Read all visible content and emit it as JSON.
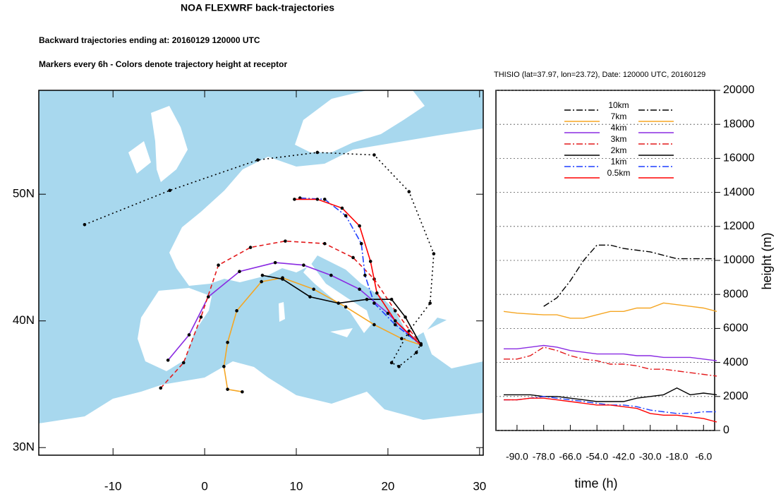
{
  "chart_data": [
    {
      "type": "trajectory",
      "title": "NOA FLEXWRF back-trajectories",
      "subtitle": "Backward trajectories ending at: 20160129  120000 UTC",
      "annotation": "Markers every 6h - Colors denote trajectory height at receptor",
      "xlim": [
        -18.1,
        30.4
      ],
      "ylim": [
        29.4,
        58.2
      ],
      "xticks": [
        -10,
        0,
        10,
        20,
        30
      ],
      "yticks": [
        {
          "value": 30,
          "label": "30N"
        },
        {
          "value": 40,
          "label": "40N"
        },
        {
          "value": 50,
          "label": "50N"
        }
      ],
      "markers": true,
      "series": [
        {
          "color": "#000000",
          "dash": "dotted",
          "x": [
            -13.1,
            -3.8,
            5.8,
            12.3,
            18.5,
            22.3,
            25,
            24.6,
            22.3,
            20.4,
            21.2,
            23.1,
            23.6
          ],
          "values": [
            47.6,
            50.3,
            52.7,
            53.3,
            53.1,
            50.2,
            45.3,
            41.4,
            39.2,
            36.7,
            36.4,
            37.5,
            38.2
          ]
        },
        {
          "color": "#f5a623",
          "dash": "solid",
          "x": [
            4.1,
            2.5,
            2.1,
            2.5,
            3.5,
            6.2,
            8.5,
            11.9,
            15.4,
            18.5,
            21.5,
            23.6
          ],
          "values": [
            34.4,
            34.6,
            36.4,
            38.3,
            40.8,
            43.1,
            43.4,
            42.5,
            41.1,
            39.7,
            38.6,
            38.1
          ]
        },
        {
          "color": "#8a2be2",
          "dash": "solid",
          "x": [
            -4,
            -1.7,
            0.4,
            3.8,
            7.7,
            10.8,
            13.8,
            16.9,
            20,
            22.3,
            23.6
          ],
          "values": [
            36.9,
            38.9,
            41.9,
            43.9,
            44.6,
            44.4,
            43.6,
            42.5,
            40.6,
            38.9,
            38.1
          ]
        },
        {
          "color": "#e31a1c",
          "dash": "dashed",
          "x": [
            -4.8,
            -2.3,
            -0.4,
            1.5,
            5,
            8.8,
            13.1,
            16.2,
            18.5,
            20.8,
            23.6
          ],
          "values": [
            34.7,
            36.7,
            40.3,
            44.4,
            45.8,
            46.3,
            46.1,
            45,
            43.3,
            40.8,
            38.1
          ]
        },
        {
          "color": "#000000",
          "dash": "solid",
          "x": [
            6.3,
            8.5,
            11.5,
            14.6,
            17.7,
            20.4,
            21.9,
            23.6
          ],
          "values": [
            43.6,
            43.3,
            41.9,
            41.4,
            41.7,
            41.7,
            40.3,
            38.1
          ]
        },
        {
          "color": "#1f3fff",
          "dash": "dashdot",
          "x": [
            10.4,
            13.1,
            15.4,
            17.1,
            17.5,
            18.5,
            20.8,
            23.6
          ],
          "values": [
            49.7,
            49.6,
            48.3,
            46.1,
            43.6,
            41.4,
            39.7,
            38.1
          ]
        },
        {
          "color": "#ff0000",
          "dash": "solid",
          "x": [
            9.8,
            12.3,
            15,
            16.9,
            18.1,
            18.8,
            20.8,
            23.6
          ],
          "values": [
            49.6,
            49.6,
            48.9,
            47.5,
            44.7,
            42.2,
            40,
            38.1
          ]
        }
      ]
    },
    {
      "type": "line",
      "title": "THISIO (lat=37.97,  lon=23.72), Date: 120000 UTC, 20160129",
      "x_label": "time (h)",
      "y_label": "height (m)",
      "xlim": [
        -99.5,
        -1
      ],
      "ylim": [
        0,
        20000
      ],
      "xticks": [
        {
          "value": -90,
          "label": "-90.0"
        },
        {
          "value": -78,
          "label": "-78.0"
        },
        {
          "value": -66,
          "label": "-66.0"
        },
        {
          "value": -54,
          "label": "-54.0"
        },
        {
          "value": -42,
          "label": "-42.0"
        },
        {
          "value": -30,
          "label": "-30.0"
        },
        {
          "value": -18,
          "label": "-18.0"
        },
        {
          "value": -6,
          "label": "-6.0"
        }
      ],
      "yticks": [
        0,
        2000,
        4000,
        6000,
        8000,
        10000,
        12000,
        14000,
        16000,
        18000,
        20000
      ],
      "grid": true,
      "x": [
        -96,
        -90,
        -84,
        -78,
        -72,
        -66,
        -60,
        -54,
        -48,
        -42,
        -36,
        -30,
        -24,
        -18,
        -12,
        -6,
        0
      ],
      "series": [
        {
          "name": "10km",
          "color": "#000000",
          "dash": "dashdot",
          "values": [
            null,
            null,
            null,
            7300,
            7800,
            8800,
            10000,
            10900,
            10900,
            10700,
            10600,
            10500,
            10300,
            10100,
            10100,
            10100,
            10100
          ]
        },
        {
          "name": "7km",
          "color": "#f5a623",
          "dash": "solid",
          "values": [
            7000,
            6900,
            6850,
            6800,
            6800,
            6600,
            6600,
            6800,
            7000,
            7000,
            7200,
            7200,
            7500,
            7400,
            7300,
            7200,
            7000
          ]
        },
        {
          "name": "4km",
          "color": "#8a2be2",
          "dash": "solid",
          "values": [
            4800,
            4800,
            4900,
            5000,
            4900,
            4700,
            4600,
            4500,
            4500,
            4500,
            4400,
            4400,
            4300,
            4300,
            4300,
            4200,
            4100
          ]
        },
        {
          "name": "3km",
          "color": "#e31a1c",
          "dash": "dashdot",
          "values": [
            4200,
            4200,
            4400,
            4900,
            4700,
            4400,
            4200,
            4100,
            3900,
            3900,
            3800,
            3600,
            3600,
            3500,
            3400,
            3300,
            3200
          ]
        },
        {
          "name": "2km",
          "color": "#000000",
          "dash": "solid",
          "values": [
            2100,
            2100,
            2100,
            2000,
            2000,
            1900,
            1800,
            1700,
            1700,
            1700,
            1900,
            2000,
            2100,
            2500,
            2100,
            2200,
            2100
          ]
        },
        {
          "name": "1km",
          "color": "#1f3fff",
          "dash": "dashdot",
          "values": [
            1800,
            1800,
            1900,
            2000,
            1900,
            1800,
            1700,
            1600,
            1500,
            1500,
            1400,
            1200,
            1100,
            1000,
            1000,
            1100,
            1100
          ]
        },
        {
          "name": "0.5km",
          "color": "#ff0000",
          "dash": "solid",
          "values": [
            1800,
            1800,
            1900,
            1900,
            1800,
            1700,
            1600,
            1500,
            1500,
            1400,
            1300,
            1000,
            900,
            900,
            800,
            700,
            500
          ]
        }
      ]
    }
  ]
}
